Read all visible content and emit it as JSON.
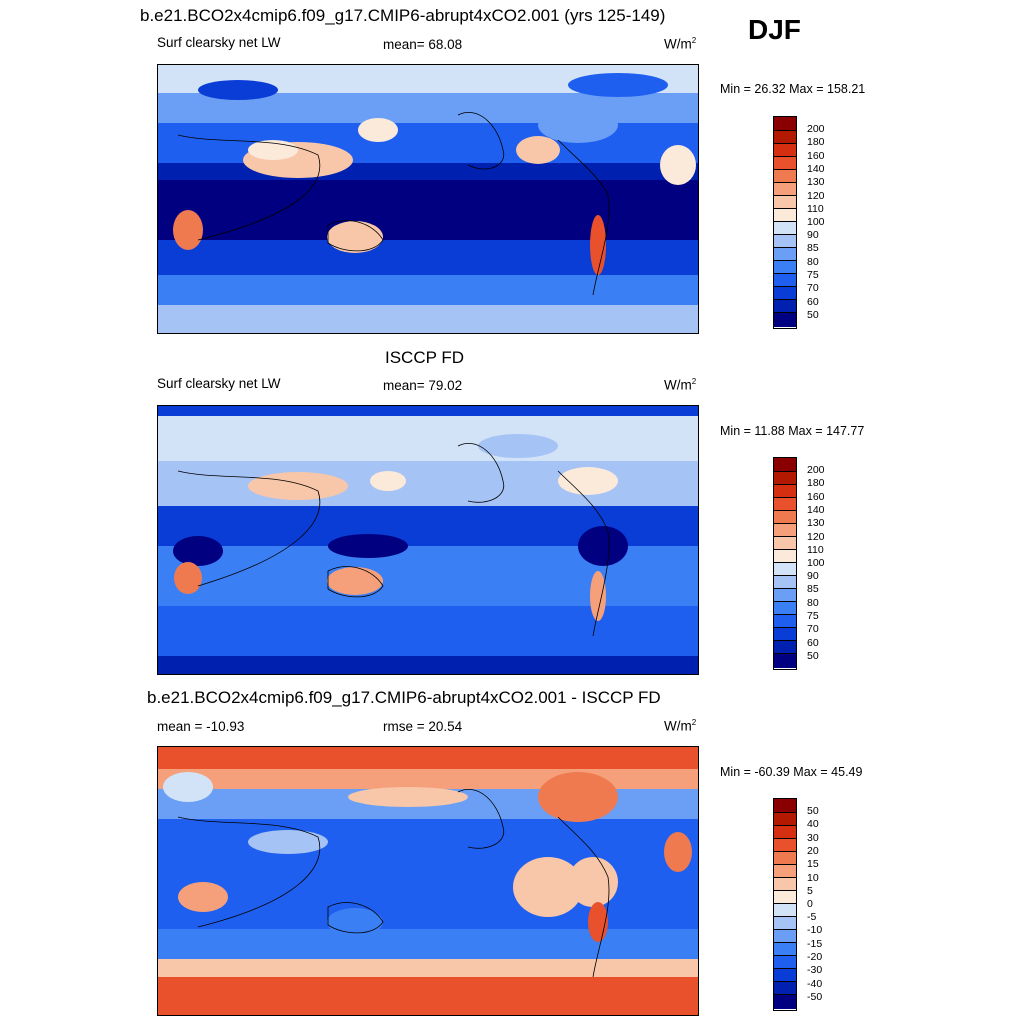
{
  "season": "DJF",
  "palette": [
    "#000080",
    "#0020b0",
    "#0a3dd6",
    "#1f5ff0",
    "#3b7ff5",
    "#6a9ff5",
    "#a5c3f5",
    "#d3e3f7",
    "#fbe9da",
    "#f8c6a8",
    "#f5a07a",
    "#f07a4f",
    "#e8512c",
    "#d42f10",
    "#b31800",
    "#8a0000"
  ],
  "panels": [
    {
      "title": "b.e21.BCO2x4cmip6.f09_g17.CMIP6-abrupt4xCO2.001 (yrs 125-149)",
      "left_label": "Surf clearsky net LW",
      "center_label": "mean=  68.08",
      "units": "W/m",
      "units_sup": "2",
      "minmax": "Min =  26.32 Max = 158.21",
      "levels": [
        "200",
        "180",
        "160",
        "140",
        "130",
        "120",
        "110",
        "100",
        "90",
        "85",
        "80",
        "75",
        "70",
        "60",
        "50"
      ]
    },
    {
      "title": "ISCCP FD",
      "left_label": "Surf clearsky net LW",
      "center_label": "mean=  79.02",
      "units": "W/m",
      "units_sup": "2",
      "minmax": "Min =  11.88 Max = 147.77",
      "levels": [
        "200",
        "180",
        "160",
        "140",
        "130",
        "120",
        "110",
        "100",
        "90",
        "85",
        "80",
        "75",
        "70",
        "60",
        "50"
      ]
    },
    {
      "title": "b.e21.BCO2x4cmip6.f09_g17.CMIP6-abrupt4xCO2.001 - ISCCP FD",
      "left_label": "mean = -10.93",
      "center_label": "rmse =  20.54",
      "units": "W/m",
      "units_sup": "2",
      "minmax": "Min = -60.39 Max =  45.49",
      "levels": [
        "50",
        "40",
        "30",
        "20",
        "15",
        "10",
        "5",
        "0",
        "-5",
        "-10",
        "-15",
        "-20",
        "-30",
        "-40",
        "-50"
      ]
    }
  ]
}
